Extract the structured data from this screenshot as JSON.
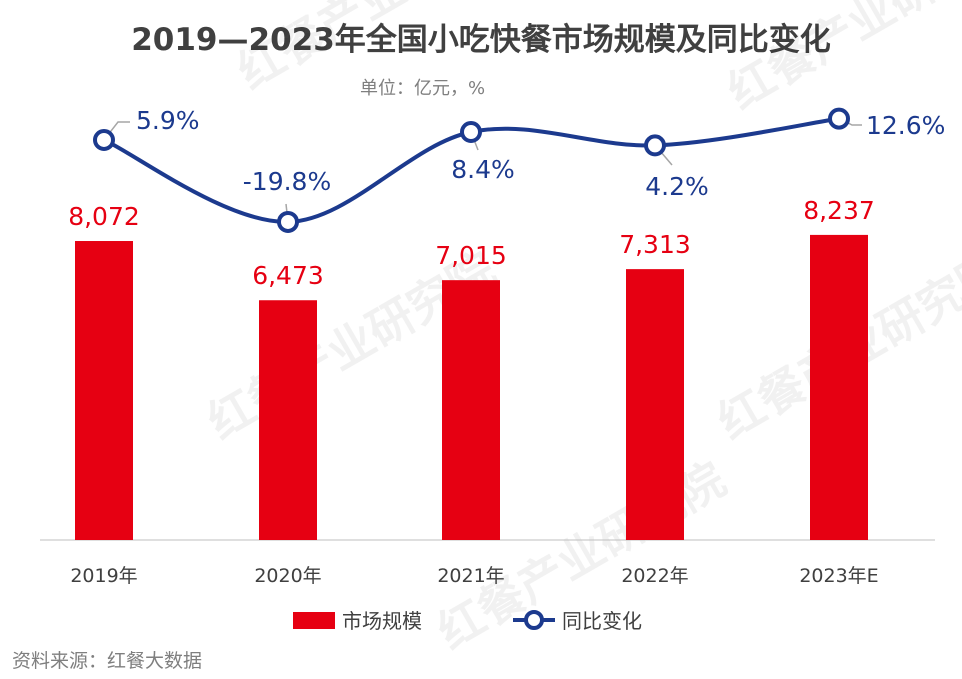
{
  "title": "2019—2023年全国小吃快餐市场规模及同比变化",
  "unit": "单位：亿元，%",
  "source": "资料来源：红餐大数据",
  "watermark": "红餐产业研究院",
  "colors": {
    "bar": "#e60012",
    "line": "#1c3a8e",
    "text": "#404040"
  },
  "chart_data": {
    "type": "bar+line",
    "categories": [
      "2019年",
      "2020年",
      "2021年",
      "2022年",
      "2023年E"
    ],
    "series": [
      {
        "name": "市场规模",
        "type": "bar",
        "values": [
          8072,
          6473,
          7015,
          7313,
          8237
        ],
        "labels": [
          "8,072",
          "6,473",
          "7,015",
          "7,313",
          "8,237"
        ]
      },
      {
        "name": "同比变化",
        "type": "line",
        "smooth": true,
        "values": [
          5.9,
          -19.8,
          8.4,
          4.2,
          12.6
        ],
        "labels": [
          "5.9%",
          "-19.8%",
          "8.4%",
          "4.2%",
          "12.6%"
        ]
      }
    ],
    "legend": "bottom",
    "grid": false
  }
}
